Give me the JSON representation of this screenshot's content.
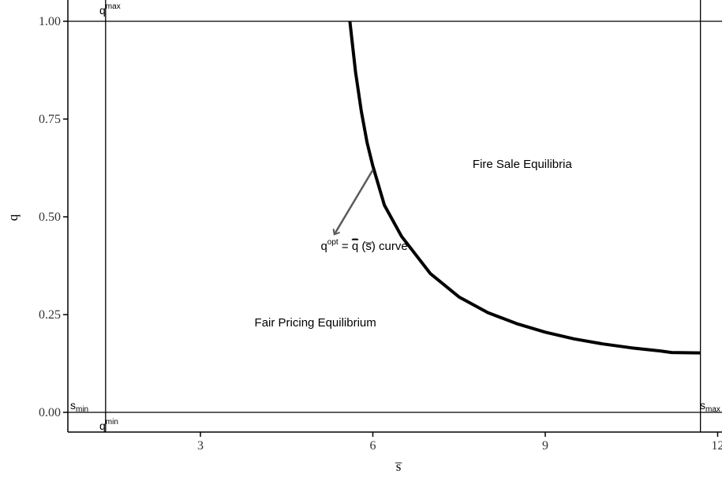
{
  "chart_data": {
    "type": "line",
    "title": "",
    "xlabel": "s̅",
    "ylabel": "q",
    "xlim": [
      0.9,
      12
    ],
    "ylim": [
      -0.05,
      1.05
    ],
    "x_ticks": [
      {
        "value": 3,
        "label": "3"
      },
      {
        "value": 6,
        "label": "6"
      },
      {
        "value": 9,
        "label": "9"
      },
      {
        "value": 12,
        "label": "12"
      }
    ],
    "y_ticks": [
      {
        "value": 0.0,
        "label": "0.00"
      },
      {
        "value": 0.25,
        "label": "0.25"
      },
      {
        "value": 0.5,
        "label": "0.50"
      },
      {
        "value": 0.75,
        "label": "0.75"
      },
      {
        "value": 1.0,
        "label": "1.00"
      }
    ],
    "grid": false,
    "series": [
      {
        "x": [
          5.6,
          5.7,
          5.8,
          5.9,
          6.0,
          6.2,
          6.5,
          7.0,
          7.5,
          8.0,
          8.5,
          9.0,
          9.5,
          10.0,
          10.5,
          11.0,
          11.2,
          11.7
        ],
        "y": [
          1.0,
          0.87,
          0.77,
          0.69,
          0.63,
          0.53,
          0.45,
          0.355,
          0.295,
          0.255,
          0.227,
          0.205,
          0.188,
          0.175,
          0.165,
          0.157,
          0.153,
          0.152
        ]
      }
    ],
    "reference_lines": {
      "vertical": [
        {
          "x": 1.35,
          "top_label": "q",
          "top_label_sup": "max",
          "bottom_label": "q",
          "bottom_label_sup": "min",
          "side_label": "s",
          "side_label_sub": "min"
        },
        {
          "x": 11.7,
          "side_label": "s",
          "side_label_sub": "max"
        }
      ],
      "horizontal": [
        0.0,
        1.0
      ]
    },
    "annotations": [
      {
        "text": "Fire Sale Equilibria",
        "x": 8.6,
        "y": 0.625
      },
      {
        "text": "Fair Pricing Equilibrium",
        "x": 5.0,
        "y": 0.22
      },
      {
        "text_prefix": "q",
        "text_sup": "opt",
        "text_eq": " = ",
        "text_qbar": "q",
        "text_paren": " (s̅) curve",
        "x": 5.85,
        "y": 0.415
      }
    ],
    "arrow": {
      "from": [
        6.0,
        0.62
      ],
      "to": [
        5.33,
        0.455
      ]
    }
  }
}
